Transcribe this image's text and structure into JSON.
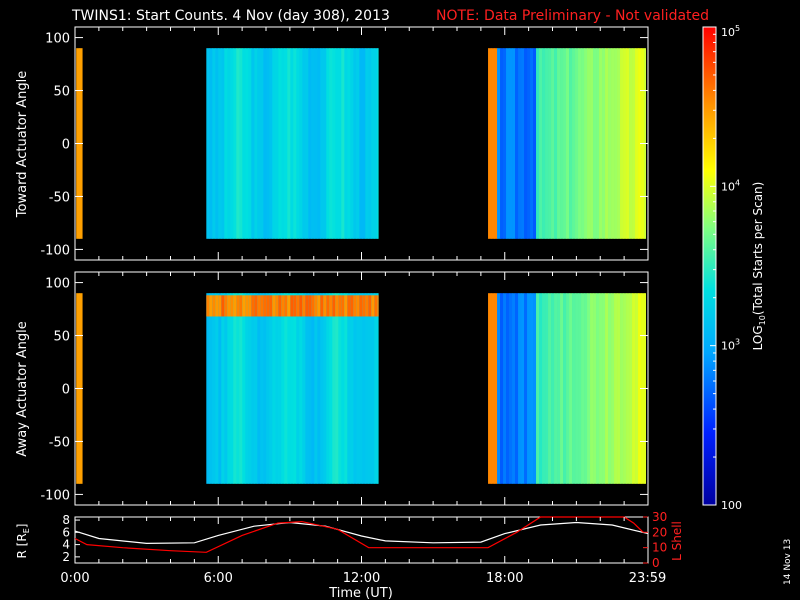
{
  "header": {
    "title": "TWINS1: Start Counts.  4 Nov (day 308), 2013",
    "note": "NOTE: Data Preliminary - Not validated",
    "note_color": "#ff0000"
  },
  "date_stamp": "14 Nov 13",
  "chart_data": [
    {
      "type": "heatmap",
      "panel": "toward",
      "ylabel": "Toward Actuator Angle",
      "ylim": [
        -110,
        110
      ],
      "yticks": [
        100,
        50,
        0,
        -50,
        -100
      ],
      "angle_range": [
        -90,
        90
      ],
      "xlim_hours": [
        0,
        24
      ],
      "data_intervals_hours": [
        [
          0.05,
          0.3
        ],
        [
          5.5,
          12.7
        ],
        [
          17.3,
          23.9
        ]
      ],
      "value_range": [
        100,
        100000
      ],
      "grid": false
    },
    {
      "type": "heatmap",
      "panel": "away",
      "ylabel": "Away Actuator Angle",
      "ylim": [
        -110,
        110
      ],
      "yticks": [
        100,
        50,
        0,
        -50,
        -100
      ],
      "angle_range": [
        -90,
        90
      ],
      "xlim_hours": [
        0,
        24
      ],
      "data_intervals_hours": [
        [
          0.05,
          0.3
        ],
        [
          5.5,
          12.7
        ],
        [
          17.3,
          23.9
        ]
      ],
      "value_range": [
        100,
        100000
      ],
      "grid": false
    },
    {
      "type": "line",
      "panel": "orbit",
      "ylabel_left": "R [R",
      "ylabel_left_sub": "E",
      "ylabel_left_end": "]",
      "yticks_left": [
        8,
        6,
        4,
        2
      ],
      "ylim_left": [
        1,
        8.5
      ],
      "ylabel_right": "L Shell",
      "yticks_right": [
        30,
        20,
        10,
        0
      ],
      "ylim_right": [
        0,
        30
      ],
      "xlabel": "Time (UT)",
      "xticks": [
        "0:00",
        "6:00",
        "12:00",
        "18:00",
        "23:59"
      ],
      "xtick_hours": [
        0,
        6,
        12,
        18,
        23.98
      ],
      "series": [
        {
          "axis": "left",
          "color": "#ffffff",
          "points": [
            [
              0,
              6.2
            ],
            [
              1,
              5.0
            ],
            [
              3,
              4.2
            ],
            [
              5,
              4.3
            ],
            [
              6,
              5.5
            ],
            [
              7.5,
              7.0
            ],
            [
              9,
              7.6
            ],
            [
              10.5,
              7.0
            ],
            [
              12,
              5.4
            ],
            [
              13,
              4.6
            ],
            [
              15,
              4.3
            ],
            [
              17,
              4.4
            ],
            [
              18,
              5.8
            ],
            [
              19.5,
              7.2
            ],
            [
              21,
              7.6
            ],
            [
              22.5,
              7.2
            ],
            [
              24,
              5.8
            ]
          ]
        },
        {
          "axis": "right",
          "color": "#ff0000",
          "points": [
            [
              0,
              16
            ],
            [
              0.5,
              12
            ],
            [
              2,
              10
            ],
            [
              4,
              8
            ],
            [
              5.5,
              7
            ],
            [
              7,
              18
            ],
            [
              8.5,
              26
            ],
            [
              9.5,
              27
            ],
            [
              11,
              22
            ],
            [
              12.3,
              10
            ],
            [
              14,
              10
            ],
            [
              16,
              10
            ],
            [
              17.3,
              10
            ],
            [
              18.5,
              20
            ],
            [
              19.5,
              30
            ],
            [
              22.5,
              30
            ],
            [
              23,
              30
            ],
            [
              23.4,
              26
            ],
            [
              23.8,
              20
            ]
          ]
        }
      ]
    },
    {
      "type": "colorbar",
      "label": "LOG",
      "label_sub": "10",
      "label_end": "(Total Starts per Scan)",
      "range": [
        100,
        100000
      ],
      "tick_labels": [
        "10",
        "10",
        "10",
        "100"
      ],
      "tick_exponents": [
        "5",
        "4",
        "3",
        ""
      ],
      "tick_values": [
        100000,
        10000,
        1000,
        100
      ]
    }
  ]
}
